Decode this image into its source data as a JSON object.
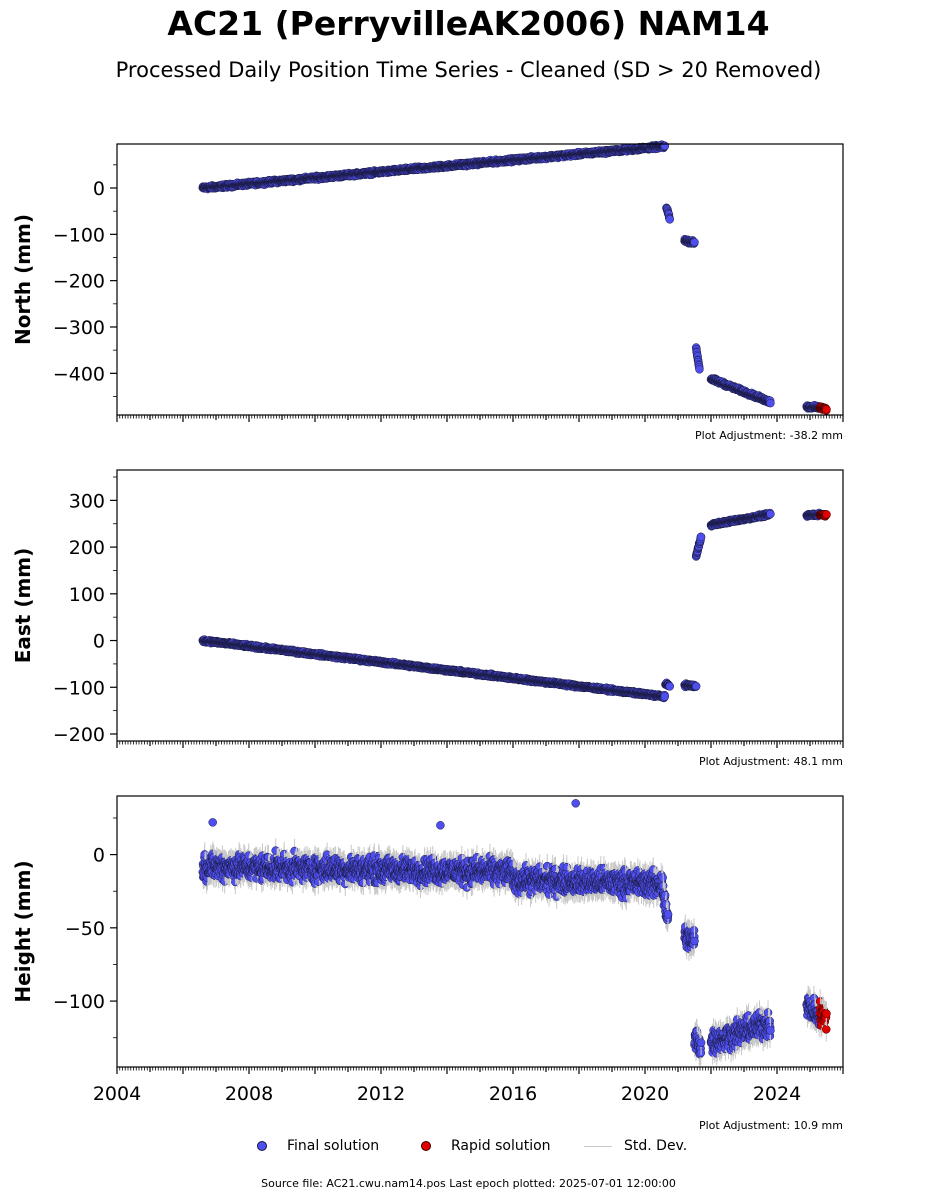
{
  "title": "AC21 (PerryvilleAK2006) NAM14",
  "subtitle": "Processed Daily Position Time Series - Cleaned (SD > 20 Removed)",
  "source_line": "Source file: AC21.cwu.nam14.pos  Last epoch plotted: 2025-07-01 12:00:00",
  "legend": {
    "final": "Final solution",
    "rapid": "Rapid solution",
    "std": "Std. Dev."
  },
  "colors": {
    "final": "#4f4ff0",
    "rapid": "#e00000",
    "std": "#c8c8c8",
    "edge": "#1a1a40"
  },
  "chart_data": [
    {
      "type": "scatter",
      "name": "north",
      "ylabel": "North (mm)",
      "adjustment": "Plot Adjustment: -38.2 mm",
      "xlim": [
        2004,
        2026
      ],
      "ylim": [
        -490,
        95
      ],
      "yticks": [
        0,
        -100,
        -200,
        -300,
        -400
      ],
      "yticklabels": [
        "0",
        "−100",
        "−200",
        "−300",
        "−400"
      ],
      "noise": 3,
      "final_segments": [
        {
          "x0": 2006.6,
          "x1": 2020.6,
          "y0": 0,
          "y1": 90
        },
        {
          "x0": 2020.65,
          "x1": 2020.75,
          "y0": -42,
          "y1": -65
        },
        {
          "x0": 2021.2,
          "x1": 2021.5,
          "y0": -113,
          "y1": -118
        },
        {
          "x0": 2021.55,
          "x1": 2021.65,
          "y0": -345,
          "y1": -390
        },
        {
          "x0": 2022.0,
          "x1": 2023.8,
          "y0": -412,
          "y1": -462
        },
        {
          "x0": 2024.9,
          "x1": 2025.3,
          "y0": -472,
          "y1": -474
        }
      ],
      "rapid_segment": {
        "x0": 2025.3,
        "x1": 2025.5,
        "y0": -474,
        "y1": -478
      }
    },
    {
      "type": "scatter",
      "name": "east",
      "ylabel": "East (mm)",
      "adjustment": "Plot Adjustment: 48.1 mm",
      "xlim": [
        2004,
        2026
      ],
      "ylim": [
        -215,
        365
      ],
      "yticks": [
        300,
        200,
        100,
        0,
        -100,
        -200
      ],
      "yticklabels": [
        "300",
        "200",
        "100",
        "0",
        "−100",
        "−200"
      ],
      "noise": 2.5,
      "final_segments": [
        {
          "x0": 2006.6,
          "x1": 2020.6,
          "y0": 0,
          "y1": -120
        },
        {
          "x0": 2020.62,
          "x1": 2020.75,
          "y0": -93,
          "y1": -97
        },
        {
          "x0": 2021.2,
          "x1": 2021.55,
          "y0": -95,
          "y1": -98
        },
        {
          "x0": 2021.55,
          "x1": 2021.7,
          "y0": 180,
          "y1": 222
        },
        {
          "x0": 2022.0,
          "x1": 2023.8,
          "y0": 248,
          "y1": 270
        },
        {
          "x0": 2024.9,
          "x1": 2025.3,
          "y0": 268,
          "y1": 270
        }
      ],
      "rapid_segment": {
        "x0": 2025.3,
        "x1": 2025.5,
        "y0": 270,
        "y1": 268
      }
    },
    {
      "type": "scatter",
      "name": "height",
      "ylabel": "Height (mm)",
      "adjustment": "Plot Adjustment: 10.9 mm",
      "xlim": [
        2004,
        2026
      ],
      "ylim": [
        -145,
        40
      ],
      "yticks": [
        0,
        -50,
        -100
      ],
      "yticklabels": [
        "0",
        "−50",
        "−100"
      ],
      "xticks": [
        2004,
        2008,
        2012,
        2016,
        2020,
        2024
      ],
      "xticklabels": [
        "2004",
        "2008",
        "2012",
        "2016",
        "2020",
        "2024"
      ],
      "noise": 7,
      "final_segments": [
        {
          "x0": 2006.6,
          "x1": 2016.0,
          "y0": -8,
          "y1": -12
        },
        {
          "x0": 2016.0,
          "x1": 2020.55,
          "y0": -17,
          "y1": -20
        },
        {
          "x0": 2020.55,
          "x1": 2020.7,
          "y0": -28,
          "y1": -45
        },
        {
          "x0": 2021.2,
          "x1": 2021.5,
          "y0": -55,
          "y1": -60
        },
        {
          "x0": 2021.5,
          "x1": 2021.7,
          "y0": -125,
          "y1": -130
        },
        {
          "x0": 2022.0,
          "x1": 2023.8,
          "y0": -128,
          "y1": -115
        },
        {
          "x0": 2024.9,
          "x1": 2025.3,
          "y0": -102,
          "y1": -112
        }
      ],
      "rapid_segment": {
        "x0": 2025.3,
        "x1": 2025.5,
        "y0": -108,
        "y1": -112
      },
      "outliers": [
        {
          "x": 2017.9,
          "y": 35
        },
        {
          "x": 2006.9,
          "y": 22
        },
        {
          "x": 2013.8,
          "y": 20
        }
      ]
    }
  ]
}
